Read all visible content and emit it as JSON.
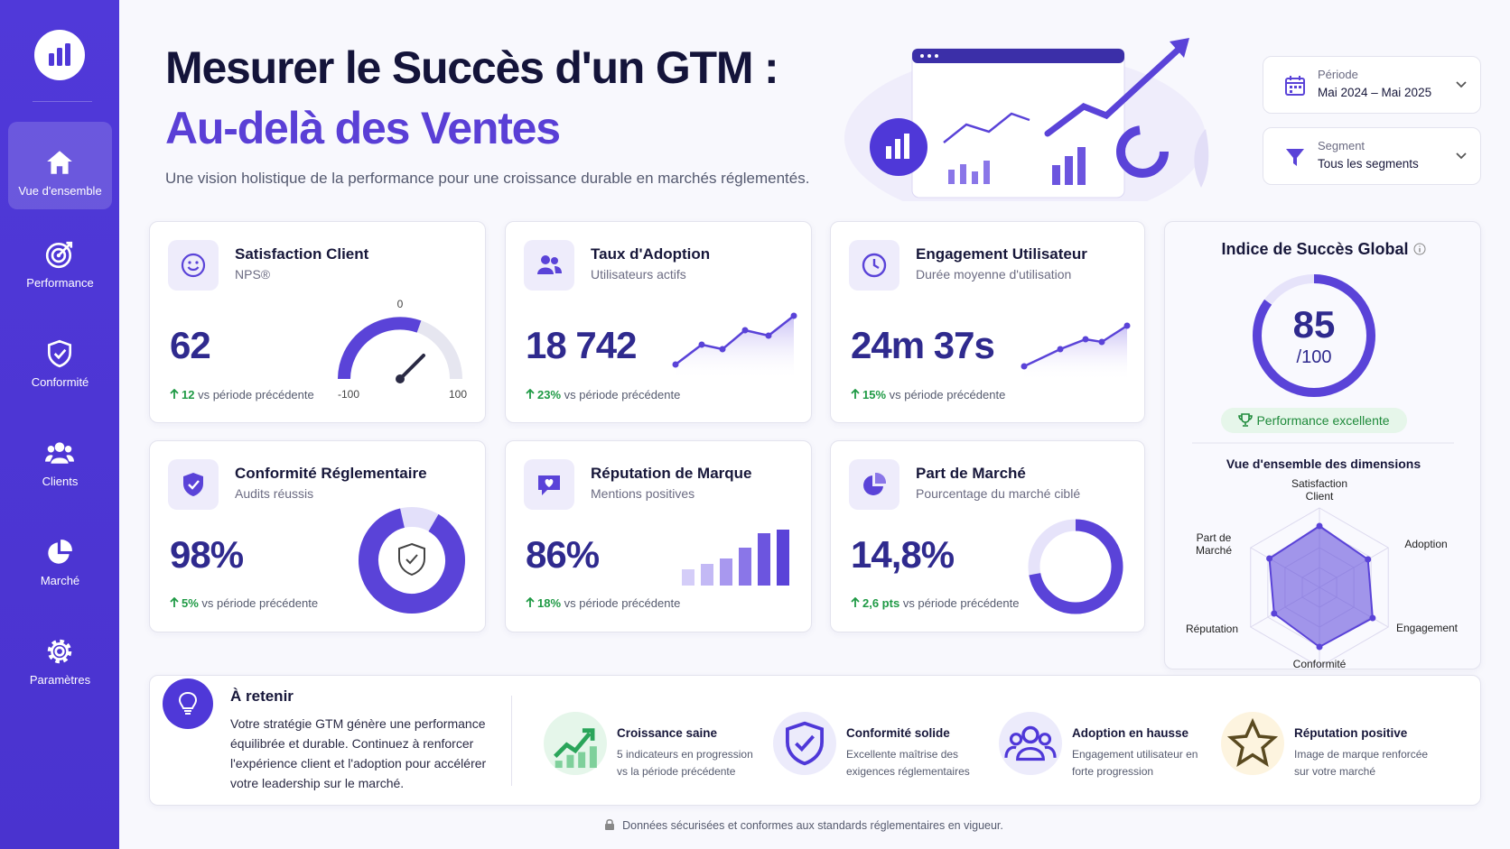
{
  "sidebar": {
    "items": [
      "Vue d'ensemble",
      "Performance",
      "Conformité",
      "Clients",
      "Marché",
      "Paramètres"
    ]
  },
  "header": {
    "title_line1": "Mesurer le Succès d'un GTM :",
    "title_line2": "Au-delà des Ventes",
    "subtitle": "Une vision holistique de la performance pour une croissance durable en marchés réglementés."
  },
  "filters": [
    {
      "label": "Période",
      "value": "Mai 2024 – Mai 2025"
    },
    {
      "label": "Segment",
      "value": "Tous les segments"
    }
  ],
  "kpis": [
    {
      "title": "Satisfaction Client",
      "subtitle": "NPS®",
      "value": "62",
      "change": "12",
      "change_text": "vs période précédente",
      "gauge_labels": {
        "mid": "0",
        "min": "-100",
        "max": "100"
      }
    },
    {
      "title": "Taux d'Adoption",
      "subtitle": "Utilisateurs actifs",
      "value": "18 742",
      "change": "23%",
      "change_text": "vs période précédente"
    },
    {
      "title": "Engagement Utilisateur",
      "subtitle": "Durée moyenne d'utilisation",
      "value": "24m 37s",
      "change": "15%",
      "change_text": "vs période précédente"
    },
    {
      "title": "Conformité Réglementaire",
      "subtitle": "Audits réussis",
      "value": "98%",
      "change": "5%",
      "change_text": "vs période précédente"
    },
    {
      "title": "Réputation de Marque",
      "subtitle": "Mentions positives",
      "value": "86%",
      "change": "18%",
      "change_text": "vs période précédente"
    },
    {
      "title": "Part de Marché",
      "subtitle": "Pourcentage du marché ciblé",
      "value": "14,8%",
      "change": "2,6 pts",
      "change_text": "vs période précédente"
    }
  ],
  "score": {
    "title": "Indice de Succès Global",
    "value": "85",
    "max": "/100",
    "badge": "Performance excellente",
    "radar_title": "Vue d'ensemble des dimensions",
    "radar_axes": [
      "Satisfaction Client",
      "Adoption",
      "Engagement",
      "Conformité",
      "Réputation",
      "Part de Marché"
    ]
  },
  "takeaway": {
    "title": "À retenir",
    "text": "Votre stratégie GTM génère une performance équilibrée et durable. Continuez à renforcer l'expérience client et l'adoption pour accélérer votre leadership sur le marché."
  },
  "highlights": [
    {
      "title": "Croissance saine",
      "text": "5 indicateurs en progression vs la période précédente"
    },
    {
      "title": "Conformité solide",
      "text": "Excellente maîtrise des exigences réglementaires"
    },
    {
      "title": "Adoption en hausse",
      "text": "Engagement utilisateur en forte progression"
    },
    {
      "title": "Réputation positive",
      "text": "Image de marque renforcée sur votre marché"
    }
  ],
  "footer": "Données sécurisées et conformes aux standards réglementaires en vigueur."
}
